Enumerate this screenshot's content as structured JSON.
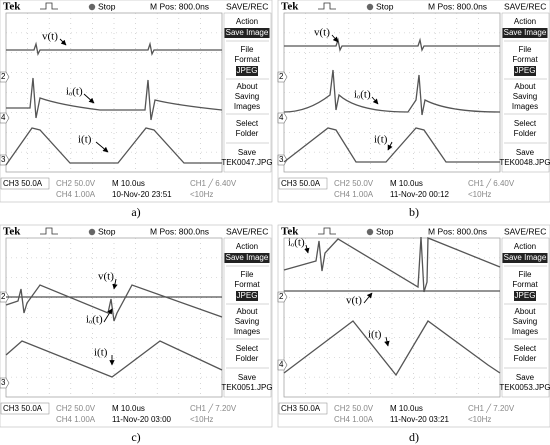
{
  "panels": [
    {
      "caption": "a)",
      "header": {
        "brand": "Tek",
        "state": "Stop",
        "position": "M Pos: 800.0ns",
        "mode": "SAVE/REC"
      },
      "menu": {
        "action": [
          "Action"
        ],
        "action_value": "Save Image",
        "format": [
          "File",
          "Format"
        ],
        "format_value": "JPEG",
        "about": [
          "About",
          "Saving",
          "Images"
        ],
        "folder": [
          "Select",
          "Folder"
        ],
        "save": [
          "Save",
          "TEK0047.JPG"
        ]
      },
      "footer": {
        "ch3": "CH3  50.0A",
        "ch2": "CH2  50.0V",
        "ch4": "CH4  1.00A",
        "time": "M 10.0us",
        "date": "10-Nov-20 23:51",
        "trigger": "CH1 ╱ 6.40V",
        "freq": "<10Hz"
      },
      "traces": {
        "v": "v(t)",
        "io": "iₒ(t)",
        "i": "i(t)"
      },
      "markers": [
        "2",
        "4",
        "3"
      ]
    },
    {
      "caption": "b)",
      "header": {
        "brand": "Tek",
        "state": "Stop",
        "position": "M Pos: 800.0ns",
        "mode": "SAVE/REC"
      },
      "menu": {
        "action": [
          "Action"
        ],
        "action_value": "Save Image",
        "format": [
          "File",
          "Format"
        ],
        "format_value": "JPEG",
        "about": [
          "About",
          "Saving",
          "Images"
        ],
        "folder": [
          "Select",
          "Folder"
        ],
        "save": [
          "Save",
          "TEK0048.JPG"
        ]
      },
      "footer": {
        "ch3": "CH3  50.0A",
        "ch2": "CH2  50.0V",
        "ch4": "CH4  1.00A",
        "time": "M 10.0us",
        "date": "11-Nov-20 00:12",
        "trigger": "CH1 ╱ 6.40V",
        "freq": "<10Hz"
      },
      "traces": {
        "v": "v(t)",
        "io": "iₒ(t)",
        "i": "i(t)"
      },
      "markers": [
        "2",
        "4",
        "3"
      ]
    },
    {
      "caption": "c)",
      "header": {
        "brand": "Tek",
        "state": "Stop",
        "position": "M Pos: 800.0ns",
        "mode": "SAVE/REC"
      },
      "menu": {
        "action": [
          "Action"
        ],
        "action_value": "Save Image",
        "format": [
          "File",
          "Format"
        ],
        "format_value": "JPEG",
        "about": [
          "About",
          "Saving",
          "Images"
        ],
        "folder": [
          "Select",
          "Folder"
        ],
        "save": [
          "Save",
          "TEK0051.JPG"
        ]
      },
      "footer": {
        "ch3": "CH3  50.0A",
        "ch2": "CH2  50.0V",
        "ch4": "CH4  1.00A",
        "time": "M 10.0us",
        "date": "11-Nov-20 03:00",
        "trigger": "CH1 ╱ 7.20V",
        "freq": "<10Hz"
      },
      "traces": {
        "v": "v(t)",
        "io": "iₒ(t)",
        "i": "i(t)"
      },
      "markers": [
        "2",
        "3"
      ]
    },
    {
      "caption": "d)",
      "header": {
        "brand": "Tek",
        "state": "Stop",
        "position": "M Pos: 800.0ns",
        "mode": "SAVE/REC"
      },
      "menu": {
        "action": [
          "Action"
        ],
        "action_value": "Save Image",
        "format": [
          "File",
          "Format"
        ],
        "format_value": "JPEG",
        "about": [
          "About",
          "Saving",
          "Images"
        ],
        "folder": [
          "Select",
          "Folder"
        ],
        "save": [
          "Save",
          "TEK0053.JPG"
        ]
      },
      "footer": {
        "ch3": "CH3  50.0A",
        "ch2": "CH2  50.0V",
        "ch4": "CH4  1.00A",
        "time": "M 10.0us",
        "date": "11-Nov-20 03:21",
        "trigger": "CH1 ╱ 7.20V",
        "freq": "<10Hz"
      },
      "traces": {
        "v": "v(t)",
        "io": "iₒ(t)",
        "i": "i(t)"
      },
      "markers": [
        "2",
        "4"
      ]
    }
  ]
}
